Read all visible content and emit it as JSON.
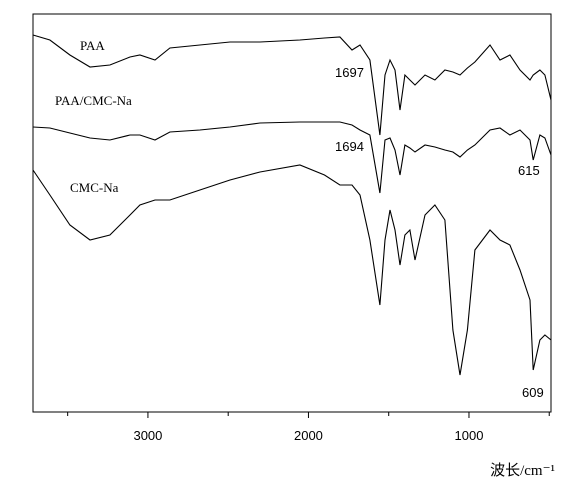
{
  "chart_data": {
    "type": "line",
    "xlabel": "波长/cm⁻¹",
    "x": [
      3716,
      3611,
      3486,
      3361,
      3237,
      3112,
      3050,
      2956,
      2863,
      2676,
      2489,
      2302,
      2053,
      1900,
      1804,
      1729,
      1679,
      1617,
      1555,
      1523,
      1492,
      1461,
      1430,
      1399,
      1368,
      1336,
      1274,
      1212,
      1150,
      1100,
      1056,
      1010,
      963,
      869,
      807,
      745,
      682,
      620,
      600,
      558,
      527,
      489
    ],
    "series": [
      {
        "name": "PAA",
        "color": "#000000",
        "values": [
          377,
          372,
          357,
          345,
          347,
          355,
          357,
          352,
          364,
          367,
          370,
          370,
          372,
          374,
          375,
          362,
          367,
          352,
          277,
          337,
          352,
          342,
          302,
          337,
          332,
          327,
          337,
          332,
          342,
          340,
          337,
          344,
          350,
          367,
          352,
          357,
          342,
          332,
          337,
          342,
          337,
          312
        ]
      },
      {
        "name": "PAA/CMC-Na",
        "color": "#000000",
        "values": [
          285,
          284,
          279,
          274,
          272,
          277,
          277,
          272,
          280,
          282,
          285,
          289,
          290,
          290,
          290,
          287,
          282,
          277,
          219,
          272,
          274,
          262,
          237,
          267,
          264,
          260,
          267,
          265,
          262,
          260,
          255,
          262,
          267,
          282,
          284,
          277,
          282,
          272,
          252,
          277,
          274,
          257
        ]
      },
      {
        "name": "CMC-Na",
        "color": "#000000",
        "values": [
          242,
          217,
          187,
          172,
          177,
          197,
          207,
          212,
          212,
          222,
          232,
          240,
          247,
          237,
          227,
          227,
          217,
          172,
          107,
          172,
          202,
          182,
          147,
          177,
          182,
          152,
          197,
          207,
          192,
          82,
          37,
          82,
          162,
          182,
          172,
          167,
          142,
          112,
          42,
          72,
          77,
          72
        ]
      }
    ],
    "annotations": [
      "1697",
      "1694",
      "615",
      "609"
    ],
    "xlim": [
      3716,
      489
    ],
    "xticks": [
      3000,
      2000,
      1000
    ],
    "xminorticks": [
      3500,
      2500,
      1500,
      500
    ],
    "ylim": [
      0,
      400
    ]
  }
}
